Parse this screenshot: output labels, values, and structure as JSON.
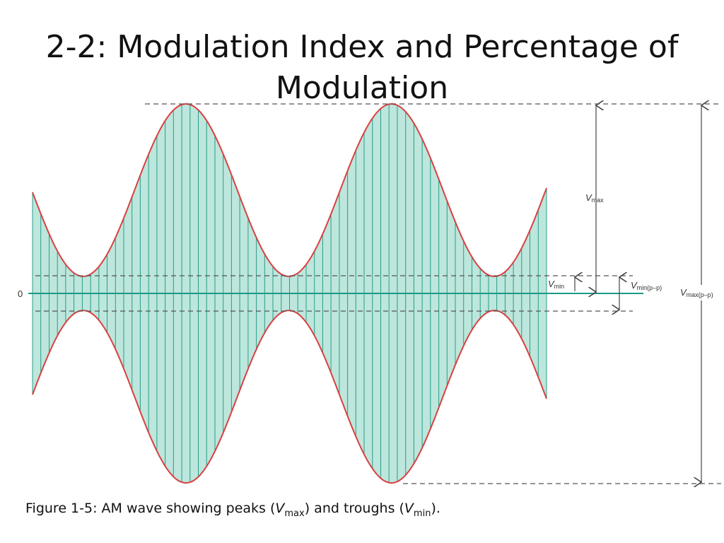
{
  "slide": {
    "title_line1": "2-2: Modulation Index and Percentage of",
    "title_line2": "Modulation"
  },
  "diagram": {
    "zero_label": "0",
    "labels": {
      "vmax": {
        "main": "V",
        "sub": "max"
      },
      "vmin": {
        "main": "V",
        "sub": "min"
      },
      "vmin_pp": {
        "main": "V",
        "sub": "min(p–p)"
      },
      "vmax_pp": {
        "main": "V",
        "sub": "max(p–p)"
      }
    },
    "colors": {
      "envelope": "#d94040",
      "fill": "#bde6dc",
      "carrier": "#2a9d8a",
      "baseline": "#1a9a85",
      "dashed": "#555555",
      "arrow": "#444444"
    },
    "modulation": {
      "envelope_peak": 1.0,
      "envelope_trough": 0.09,
      "envelope_cycles": 2.5,
      "carrier_cycles_visible": 62
    }
  },
  "caption": {
    "prefix": "Figure 1-5: AM wave showing peaks (",
    "v1": "V",
    "v1_sub": "max",
    "middle": ") and troughs (",
    "v2": "V",
    "v2_sub": "min",
    "suffix": ")."
  }
}
